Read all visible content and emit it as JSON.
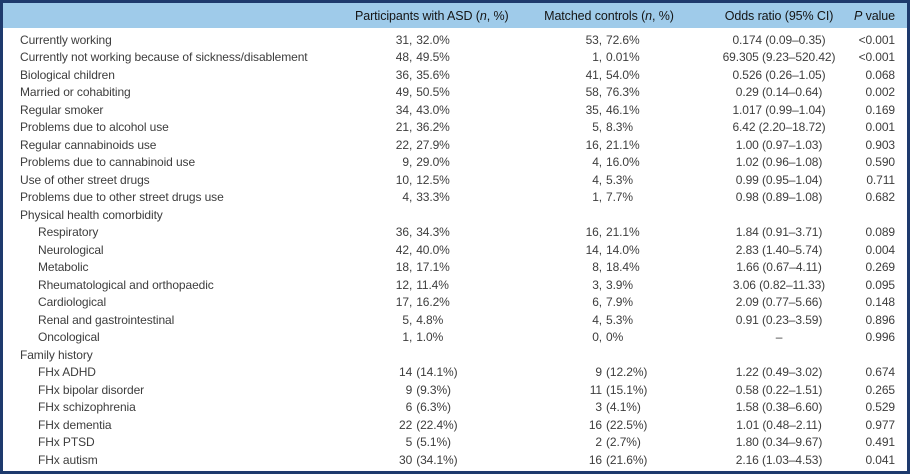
{
  "table": {
    "columns": [
      {
        "name": "row-label-column-header",
        "label": ""
      },
      {
        "name": "asd-column-header",
        "label": "Participants with ASD (*n*, %)"
      },
      {
        "name": "controls-column-header",
        "label": "Matched controls (*n*, %)"
      },
      {
        "name": "odds-ratio-column-header",
        "label": "Odds ratio (95% CI)"
      },
      {
        "name": "p-value-column-header",
        "label": "*P* value"
      }
    ],
    "rows": [
      {
        "label": "Currently working",
        "indent": 0,
        "asd": "31, 32.0%",
        "controls": "53, 72.6%",
        "or": "0.174 (0.09–0.35)",
        "p": "<0.001"
      },
      {
        "label": "Currently not working because of sickness/disablement",
        "indent": 0,
        "asd": "48, 49.5%",
        "controls": "1, 0.01%",
        "or": "69.305 (9.23–520.42)",
        "p": "<0.001"
      },
      {
        "label": "Biological children",
        "indent": 0,
        "asd": "36, 35.6%",
        "controls": "41, 54.0%",
        "or": "0.526 (0.26–1.05)",
        "p": "0.068"
      },
      {
        "label": "Married or cohabiting",
        "indent": 0,
        "asd": "49, 50.5%",
        "controls": "58, 76.3%",
        "or": "0.29 (0.14–0.64)",
        "p": "0.002"
      },
      {
        "label": "Regular smoker",
        "indent": 0,
        "asd": "34, 43.0%",
        "controls": "35, 46.1%",
        "or": "1.017 (0.99–1.04)",
        "p": "0.169"
      },
      {
        "label": "Problems due to alcohol use",
        "indent": 0,
        "asd": "21, 36.2%",
        "controls": "5, 8.3%",
        "or": "6.42 (2.20–18.72)",
        "p": "0.001"
      },
      {
        "label": "Regular cannabinoids use",
        "indent": 0,
        "asd": "22, 27.9%",
        "controls": "16, 21.1%",
        "or": "1.00 (0.97–1.03)",
        "p": "0.903"
      },
      {
        "label": "Problems due to cannabinoid use",
        "indent": 0,
        "asd": "9, 29.0%",
        "controls": "4, 16.0%",
        "or": "1.02 (0.96–1.08)",
        "p": "0.590"
      },
      {
        "label": "Use of other street drugs",
        "indent": 0,
        "asd": "10, 12.5%",
        "controls": "4, 5.3%",
        "or": "0.99 (0.95–1.04)",
        "p": "0.711"
      },
      {
        "label": "Problems due to other street drugs use",
        "indent": 0,
        "asd": "4, 33.3%",
        "controls": "1, 7.7%",
        "or": "0.98 (0.89–1.08)",
        "p": "0.682"
      },
      {
        "label": "Physical health comorbidity",
        "indent": 0,
        "asd": "",
        "controls": "",
        "or": "",
        "p": ""
      },
      {
        "label": "Respiratory",
        "indent": 1,
        "asd": "36, 34.3%",
        "controls": "16, 21.1%",
        "or": "1.84 (0.91–3.71)",
        "p": "0.089"
      },
      {
        "label": "Neurological",
        "indent": 1,
        "asd": "42, 40.0%",
        "controls": "14, 14.0%",
        "or": "2.83 (1.40–5.74)",
        "p": "0.004"
      },
      {
        "label": "Metabolic",
        "indent": 1,
        "asd": "18, 17.1%",
        "controls": "8, 18.4%",
        "or": "1.66 (0.67–4.11)",
        "p": "0.269"
      },
      {
        "label": "Rheumatological and orthopaedic",
        "indent": 1,
        "asd": "12, 11.4%",
        "controls": "3, 3.9%",
        "or": "3.06 (0.82–11.33)",
        "p": "0.095"
      },
      {
        "label": "Cardiological",
        "indent": 1,
        "asd": "17, 16.2%",
        "controls": "6, 7.9%",
        "or": "2.09 (0.77–5.66)",
        "p": "0.148"
      },
      {
        "label": "Renal and gastrointestinal",
        "indent": 1,
        "asd": "5, 4.8%",
        "controls": "4, 5.3%",
        "or": "0.91 (0.23–3.59)",
        "p": "0.896"
      },
      {
        "label": "Oncological",
        "indent": 1,
        "asd": "1, 1.0%",
        "controls": "0, 0%",
        "or": "–",
        "p": "0.996"
      },
      {
        "label": "Family history",
        "indent": 0,
        "asd": "",
        "controls": "",
        "or": "",
        "p": ""
      },
      {
        "label": "FHx ADHD",
        "indent": 1,
        "asd": "14 (14.1%)",
        "controls": "9 (12.2%)",
        "or": "1.22 (0.49–3.02)",
        "p": "0.674"
      },
      {
        "label": "FHx bipolar disorder",
        "indent": 1,
        "asd": "9 (9.3%)",
        "controls": "11 (15.1%)",
        "or": "0.58 (0.22–1.51)",
        "p": "0.265"
      },
      {
        "label": "FHx schizophrenia",
        "indent": 1,
        "asd": "6 (6.3%)",
        "controls": "3 (4.1%)",
        "or": "1.58 (0.38–6.60)",
        "p": "0.529"
      },
      {
        "label": "FHx dementia",
        "indent": 1,
        "asd": "22 (22.4%)",
        "controls": "16 (22.5%)",
        "or": "1.01 (0.48–2.11)",
        "p": "0.977"
      },
      {
        "label": "FHx PTSD",
        "indent": 1,
        "asd": "5 (5.1%)",
        "controls": "2 (2.7%)",
        "or": "1.80 (0.34–9.67)",
        "p": "0.491"
      },
      {
        "label": "FHx autism",
        "indent": 1,
        "asd": "30 (34.1%)",
        "controls": "16 (21.6%)",
        "or": "2.16 (1.03–4.53)",
        "p": "0.041"
      }
    ],
    "colors": {
      "header_background": "#9fcbea",
      "outer_border": "#1e3a6d",
      "bottom_rule": "#2c53a0",
      "body_text": "#3d3d3d"
    }
  }
}
